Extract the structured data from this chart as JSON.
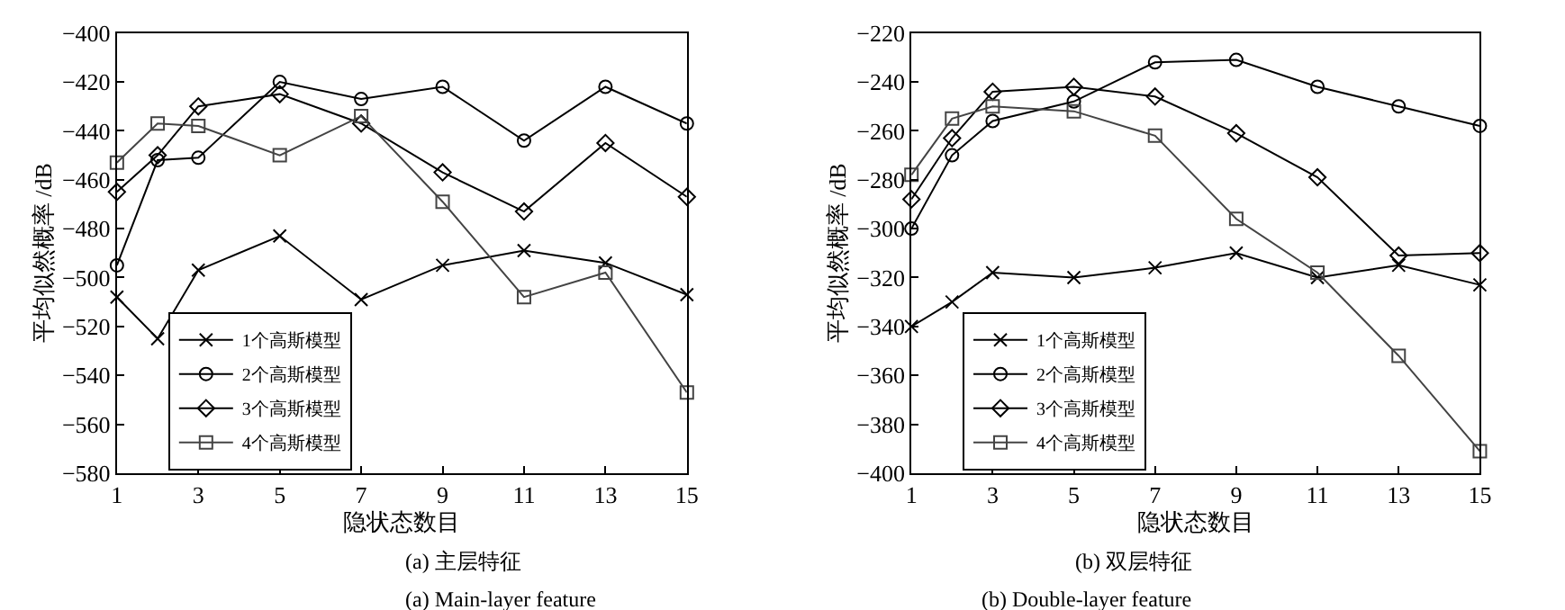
{
  "chart_data": [
    {
      "type": "line",
      "xlabel": "隐状态数目",
      "ylabel": "平均似然概率 /dB",
      "x": [
        1,
        2,
        3,
        5,
        7,
        9,
        11,
        13,
        15
      ],
      "xlim": [
        1,
        15
      ],
      "xticks": [
        1,
        3,
        5,
        7,
        9,
        11,
        13,
        15
      ],
      "ylim": [
        -580,
        -400
      ],
      "yticks": [
        -580,
        -560,
        -540,
        -520,
        -500,
        -480,
        -460,
        -440,
        -420,
        -400
      ],
      "legend": "bottom left",
      "line_style": "solid",
      "annotations": [
        "(a) 主层特征",
        "(a) Main-layer feature"
      ],
      "series": [
        {
          "name": "1个高斯模型",
          "color": "#000000",
          "marker": "cross",
          "values": [
            -508,
            -525,
            -497,
            -483,
            -509,
            -495,
            -489,
            -494,
            -507
          ]
        },
        {
          "name": "2个高斯模型",
          "color": "#000000",
          "marker": "circle",
          "values": [
            -495,
            -452,
            -451,
            -420,
            -427,
            -422,
            -444,
            -422,
            -437
          ]
        },
        {
          "name": "3个高斯模型",
          "color": "#000000",
          "marker": "diamond",
          "values": [
            -465,
            -450,
            -430,
            -425,
            -437,
            -457,
            -473,
            -445,
            -467
          ]
        },
        {
          "name": "4个高斯模型",
          "color": "#444444",
          "marker": "square",
          "values": [
            -453,
            -437,
            -438,
            -450,
            -434,
            -469,
            -508,
            -498,
            -547
          ]
        }
      ]
    },
    {
      "type": "line",
      "xlabel": "隐状态数目",
      "ylabel": "平均似然概率 /dB",
      "x": [
        1,
        2,
        3,
        5,
        7,
        9,
        11,
        13,
        15
      ],
      "xlim": [
        1,
        15
      ],
      "xticks": [
        1,
        3,
        5,
        7,
        9,
        11,
        13,
        15
      ],
      "ylim": [
        -400,
        -220
      ],
      "yticks": [
        -400,
        -380,
        -360,
        -340,
        -320,
        -300,
        -280,
        -260,
        -240,
        -220
      ],
      "legend": "bottom left",
      "line_style": "solid",
      "annotations": [
        "(b) 双层特征",
        "(b) Double-layer feature"
      ],
      "series": [
        {
          "name": "1个高斯模型",
          "color": "#000000",
          "marker": "cross",
          "values": [
            -340,
            -330,
            -318,
            -320,
            -316,
            -310,
            -320,
            -315,
            -323
          ]
        },
        {
          "name": "2个高斯模型",
          "color": "#000000",
          "marker": "circle",
          "values": [
            -300,
            -270,
            -256,
            -248,
            -232,
            -231,
            -242,
            -250,
            -258
          ]
        },
        {
          "name": "3个高斯模型",
          "color": "#000000",
          "marker": "diamond",
          "values": [
            -288,
            -263,
            -244,
            -242,
            -246,
            -261,
            -279,
            -311,
            -310
          ]
        },
        {
          "name": "4个高斯模型",
          "color": "#444444",
          "marker": "square",
          "values": [
            -278,
            -255,
            -250,
            -252,
            -262,
            -296,
            -318,
            -352,
            -391
          ]
        }
      ]
    }
  ]
}
